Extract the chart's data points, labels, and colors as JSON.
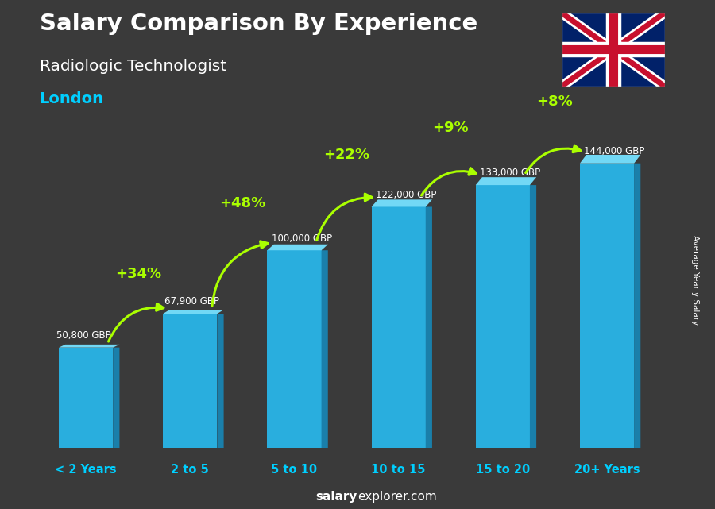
{
  "title_line1": "Salary Comparison By Experience",
  "title_line2": "Radiologic Technologist",
  "subtitle": "London",
  "categories": [
    "< 2 Years",
    "2 to 5",
    "5 to 10",
    "10 to 15",
    "15 to 20",
    "20+ Years"
  ],
  "values": [
    50800,
    67900,
    100000,
    122000,
    133000,
    144000
  ],
  "labels": [
    "50,800 GBP",
    "67,900 GBP",
    "100,000 GBP",
    "122,000 GBP",
    "133,000 GBP",
    "144,000 GBP"
  ],
  "pct_changes": [
    "+34%",
    "+48%",
    "+22%",
    "+9%",
    "+8%"
  ],
  "bar_color_main": "#29AEDE",
  "bar_color_left": "#55C8F0",
  "bar_color_right": "#1A7FAA",
  "bar_color_top": "#72D8F5",
  "pct_color": "#AAFF00",
  "label_color": "#FFFFFF",
  "title_color": "#FFFFFF",
  "subtitle_color": "#00CFFF",
  "bg_color": "#3a3a3a",
  "footer_bold": "salary",
  "footer_rest": "explorer.com",
  "ylabel_text": "Average Yearly Salary",
  "ylim": [
    0,
    170000
  ],
  "bar_width": 0.52
}
